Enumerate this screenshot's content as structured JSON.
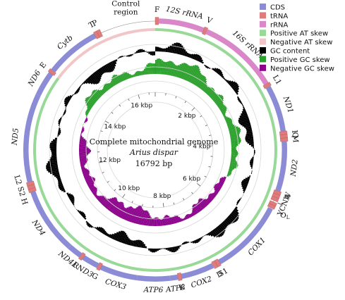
{
  "genome": {
    "title": "Complete mitochondrial genome",
    "species": "Arius dispar",
    "length_label": "16792 bp",
    "length": 16792
  },
  "legend": [
    {
      "label": "CDS",
      "color": "#8c8cd6"
    },
    {
      "label": "tRNA",
      "color": "#e07b7b"
    },
    {
      "label": "rRNA",
      "color": "#d987c8"
    },
    {
      "label": "Positive AT skew",
      "color": "#98d998"
    },
    {
      "label": "Negative AT skew",
      "color": "#f2c6c6"
    },
    {
      "label": "GC content",
      "color": "#000000"
    },
    {
      "label": "Positive GC skew",
      "color": "#2ca02c"
    },
    {
      "label": "Negative GC skew",
      "color": "#8b008b"
    }
  ],
  "kbp_ticks": [
    {
      "label": "2 kbp",
      "pos": 2000
    },
    {
      "label": "4 kbp",
      "pos": 4000
    },
    {
      "label": "6 kbp",
      "pos": 6000
    },
    {
      "label": "8 kbp",
      "pos": 8000
    },
    {
      "label": "10 kbp",
      "pos": 10000
    },
    {
      "label": "12 kbp",
      "pos": 12000
    },
    {
      "label": "14 kbp",
      "pos": 14000
    },
    {
      "label": "16 kbp",
      "pos": 16000
    }
  ],
  "features": [
    {
      "name": "F",
      "type": "tRNA",
      "start": 0,
      "end": 70
    },
    {
      "name": "12S rRNA",
      "type": "rRNA",
      "start": 70,
      "end": 1020
    },
    {
      "name": "V",
      "type": "tRNA",
      "start": 1020,
      "end": 1090
    },
    {
      "name": "16S rRNA",
      "type": "rRNA",
      "start": 1090,
      "end": 2760
    },
    {
      "name": "L1",
      "type": "tRNA",
      "start": 2760,
      "end": 2835
    },
    {
      "name": "ND1",
      "type": "CDS",
      "start": 2835,
      "end": 3810
    },
    {
      "name": "I",
      "type": "tRNA",
      "start": 3810,
      "end": 3880
    },
    {
      "name": "Q",
      "type": "tRNA",
      "start": 3880,
      "end": 3950
    },
    {
      "name": "M",
      "type": "tRNA",
      "start": 3950,
      "end": 4020
    },
    {
      "name": "ND2",
      "type": "CDS",
      "start": 4020,
      "end": 5060
    },
    {
      "name": "W",
      "type": "tRNA",
      "start": 5060,
      "end": 5130
    },
    {
      "name": "A",
      "type": "tRNA",
      "start": 5130,
      "end": 5200
    },
    {
      "name": "N",
      "type": "tRNA",
      "start": 5200,
      "end": 5275
    },
    {
      "name": "C",
      "type": "tRNA",
      "start": 5305,
      "end": 5370
    },
    {
      "name": "Y",
      "type": "tRNA",
      "start": 5370,
      "end": 5440
    },
    {
      "name": "COX1",
      "type": "CDS",
      "start": 5450,
      "end": 7010
    },
    {
      "name": "S1",
      "type": "tRNA",
      "start": 7010,
      "end": 7080
    },
    {
      "name": "D",
      "type": "tRNA",
      "start": 7085,
      "end": 7155
    },
    {
      "name": "COX2",
      "type": "CDS",
      "start": 7160,
      "end": 7850
    },
    {
      "name": "K",
      "type": "tRNA",
      "start": 7850,
      "end": 7925
    },
    {
      "name": "ATP8",
      "type": "CDS",
      "start": 7925,
      "end": 8090
    },
    {
      "name": "ATP6",
      "type": "CDS",
      "start": 8090,
      "end": 8770
    },
    {
      "name": "COX3",
      "type": "CDS",
      "start": 8770,
      "end": 9550
    },
    {
      "name": "G",
      "type": "tRNA",
      "start": 9550,
      "end": 9620
    },
    {
      "name": "ND3",
      "type": "CDS",
      "start": 9620,
      "end": 9970
    },
    {
      "name": "R",
      "type": "tRNA",
      "start": 9970,
      "end": 10040
    },
    {
      "name": "ND4L",
      "type": "CDS",
      "start": 10040,
      "end": 10335
    },
    {
      "name": "ND4",
      "type": "CDS",
      "start": 10335,
      "end": 11715
    },
    {
      "name": "H",
      "type": "tRNA",
      "start": 11715,
      "end": 11785
    },
    {
      "name": "S2",
      "type": "tRNA",
      "start": 11785,
      "end": 11855
    },
    {
      "name": "L2",
      "type": "tRNA",
      "start": 11855,
      "end": 11928
    },
    {
      "name": "ND5",
      "type": "CDS",
      "start": 11928,
      "end": 13770
    },
    {
      "name": "ND6",
      "type": "CDS",
      "start": 13770,
      "end": 14290
    },
    {
      "name": "E",
      "type": "tRNA",
      "start": 14290,
      "end": 14360
    },
    {
      "name": "Cytb",
      "type": "CDS",
      "start": 14360,
      "end": 15500
    },
    {
      "name": "T",
      "type": "tRNA",
      "start": 15500,
      "end": 15570
    },
    {
      "name": "P",
      "type": "tRNA",
      "start": 15570,
      "end": 15640
    },
    {
      "name": "Control region",
      "type": "noncoding",
      "start": 15640,
      "end": 16792
    }
  ],
  "origin_label": "OL",
  "labels": [
    {
      "text": "F",
      "pos": 35,
      "italic": false
    },
    {
      "text": "12S rRNA",
      "pos": 560,
      "italic": true
    },
    {
      "text": "V",
      "pos": 1055,
      "italic": false
    },
    {
      "text": "16S rRNA",
      "pos": 1920,
      "italic": true
    },
    {
      "text": "L1",
      "pos": 2800,
      "italic": false
    },
    {
      "text": "ND1",
      "pos": 3320,
      "italic": true
    },
    {
      "text": "I",
      "pos": 3845,
      "italic": false
    },
    {
      "text": "M",
      "pos": 3985,
      "italic": false
    },
    {
      "text": "Q",
      "pos": 3915,
      "italic": false
    },
    {
      "text": "ND2",
      "pos": 4540,
      "italic": true
    },
    {
      "text": "W",
      "pos": 5095,
      "italic": false
    },
    {
      "text": "YCNA",
      "pos": 5280,
      "italic": false
    },
    {
      "text": "COX1",
      "pos": 6230,
      "italic": true
    },
    {
      "text": "S1",
      "pos": 7045,
      "italic": false
    },
    {
      "text": "D",
      "pos": 7120,
      "italic": false
    },
    {
      "text": "COX2",
      "pos": 7500,
      "italic": true
    },
    {
      "text": "K",
      "pos": 7887,
      "italic": false
    },
    {
      "text": "ATP8",
      "pos": 8007,
      "italic": true
    },
    {
      "text": "ATP6",
      "pos": 8430,
      "italic": true
    },
    {
      "text": "COX3",
      "pos": 9160,
      "italic": true
    },
    {
      "text": "G",
      "pos": 9585,
      "italic": false
    },
    {
      "text": "ND3",
      "pos": 9795,
      "italic": true
    },
    {
      "text": "R",
      "pos": 10005,
      "italic": false
    },
    {
      "text": "ND4L",
      "pos": 10190,
      "italic": true
    },
    {
      "text": "ND4",
      "pos": 11020,
      "italic": true
    },
    {
      "text": "L2 S2 H",
      "pos": 11820,
      "italic": false
    },
    {
      "text": "ND5",
      "pos": 12850,
      "italic": true
    },
    {
      "text": "ND6",
      "pos": 14030,
      "italic": true
    },
    {
      "text": "E",
      "pos": 14325,
      "italic": false
    },
    {
      "text": "Cytb",
      "pos": 14930,
      "italic": true
    },
    {
      "text": "T",
      "pos": 15535,
      "italic": false
    },
    {
      "text": "P",
      "pos": 15605,
      "italic": false
    },
    {
      "text": "Control region",
      "pos": 16216,
      "italic": false
    }
  ],
  "at_skew": [
    {
      "start": 0,
      "end": 14300,
      "sign": "positive"
    },
    {
      "start": 14300,
      "end": 16792,
      "sign": "negative"
    }
  ]
}
